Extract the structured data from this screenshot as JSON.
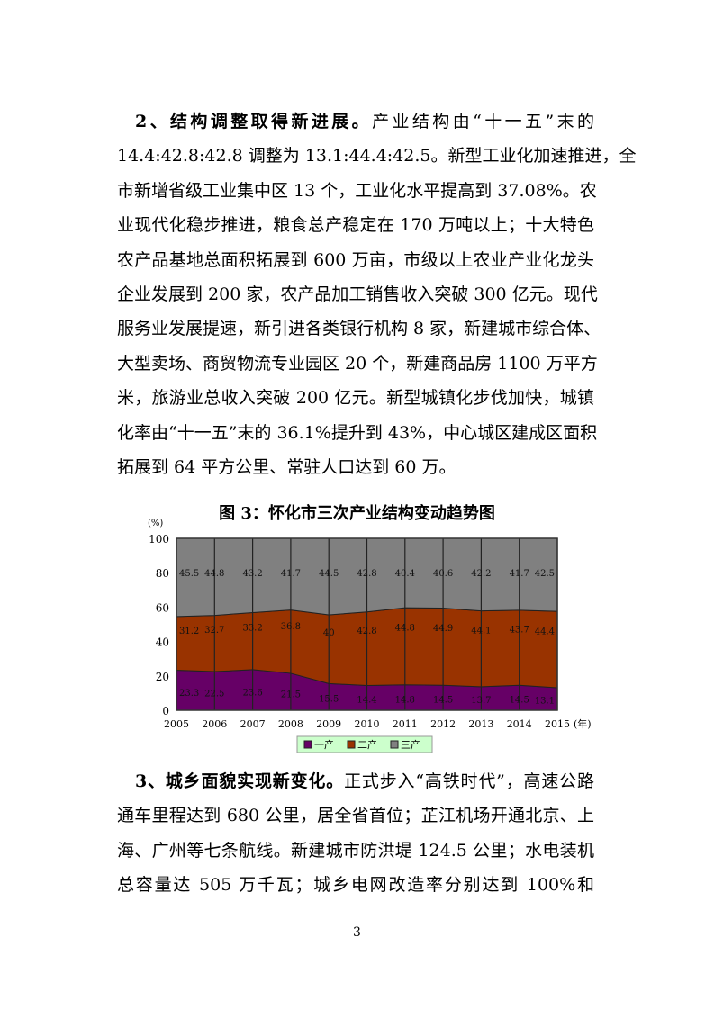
{
  "section2": {
    "heading": "2、结构调整取得新进展。",
    "lines": [
      "产业结构由“十一五”末的",
      "14.4:42.8:42.8 调整为 13.1:44.4:42.5。新型工业化加速推进，全",
      "市新增省级工业集中区 13 个，工业化水平提高到 37.08%。农",
      "业现代化稳步推进，粮食总产稳定在 170 万吨以上；十大特色",
      "农产品基地总面积拓展到 600 万亩，市级以上农业产业化龙头",
      "企业发展到 200 家，农产品加工销售收入突破 300 亿元。现代",
      "服务业发展提速，新引进各类银行机构 8 家，新建城市综合体、",
      "大型卖场、商贸物流专业园区 20 个，新建商品房 1100 万平方",
      "米，旅游业总收入突破 200 亿元。新型城镇化步伐加快，城镇",
      "化率由“十一五”末的 36.1%提升到 43%，中心城区建成区面积",
      "拓展到 64 平方公里、常驻人口达到 60 万。"
    ]
  },
  "caption": "图 3：怀化市三次产业结构变动趋势图",
  "chart_data": {
    "type": "area",
    "stacked": true,
    "ylabel": "(%)",
    "xlabel": "(年)",
    "ylim": [
      0,
      100
    ],
    "yticks": [
      "0",
      "20",
      "40",
      "60",
      "80",
      "100"
    ],
    "categories": [
      "2005",
      "2006",
      "2007",
      "2008",
      "2009",
      "2010",
      "2011",
      "2012",
      "2013",
      "2014",
      "2015"
    ],
    "series": [
      {
        "name": "一产",
        "color": "#660066",
        "values": [
          23.3,
          22.5,
          23.6,
          21.5,
          15.5,
          14.4,
          14.8,
          14.5,
          13.7,
          14.5,
          13.1
        ]
      },
      {
        "name": "二产",
        "color": "#993300",
        "values": [
          31.2,
          32.7,
          33.2,
          36.8,
          40,
          42.8,
          44.8,
          44.9,
          44.1,
          43.7,
          44.4
        ]
      },
      {
        "name": "三产",
        "color": "#808080",
        "values": [
          45.5,
          44.8,
          43.2,
          41.7,
          44.5,
          42.8,
          40.4,
          40.6,
          42.2,
          41.7,
          42.5
        ]
      }
    ],
    "data_labels": true,
    "legend_position": "bottom",
    "legend_background": "#ccffcc"
  },
  "section3": {
    "heading": "3、城乡面貌实现新变化。",
    "lines": [
      "正式步入“高铁时代”，高速公路",
      "通车里程达到 680 公里，居全省首位；芷江机场开通北京、上",
      "海、广州等七条航线。新建城市防洪堤 124.5 公里；水电装机",
      "总容量达 505 万千瓦；城乡电网改造率分别达到 100%和"
    ]
  },
  "page_number": "3"
}
